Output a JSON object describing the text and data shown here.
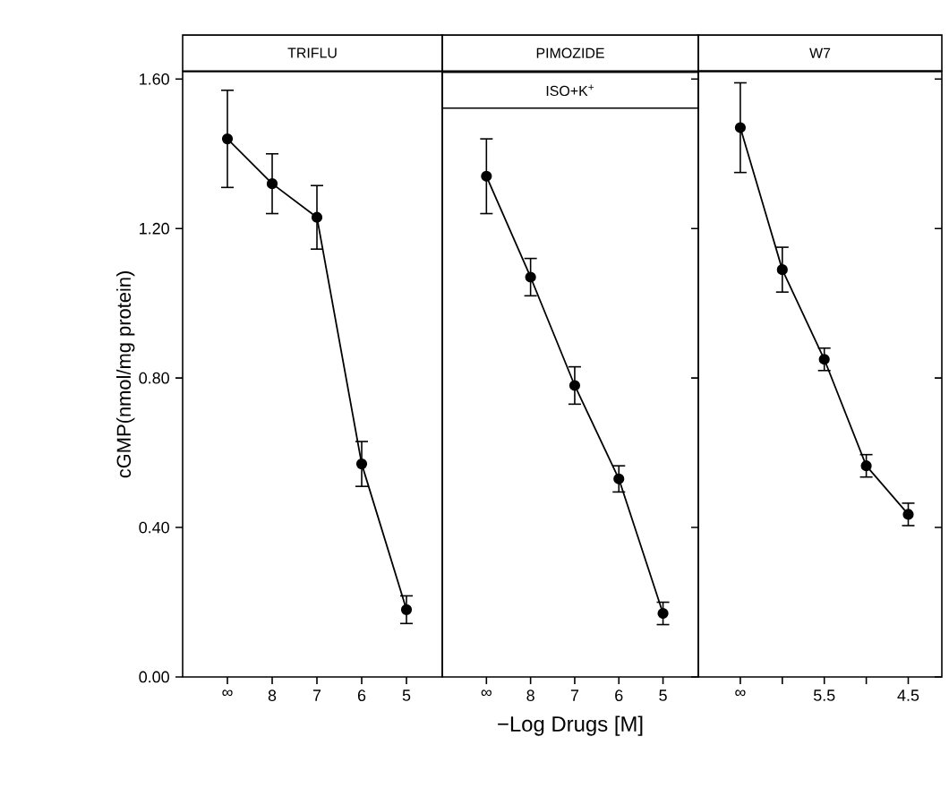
{
  "chart_data": [
    {
      "type": "line",
      "title": "TRIFLU",
      "ylabel": "cGMP(nmol/mg protein)",
      "categories": [
        "∞",
        "8",
        "7",
        "6",
        "5"
      ],
      "values": [
        1.44,
        1.32,
        1.23,
        0.57,
        0.18
      ],
      "errors": [
        0.13,
        0.08,
        0.085,
        0.06,
        0.037
      ],
      "color": "#000000",
      "marker": "circle",
      "ylim": [
        0,
        1.62
      ],
      "yticks": [
        {
          "value": 0,
          "label": "0.00"
        },
        {
          "value": 0.4,
          "label": "0.40"
        },
        {
          "value": 0.8,
          "label": "0.80"
        },
        {
          "value": 1.2,
          "label": "1.20"
        },
        {
          "value": 1.6,
          "label": "1.60"
        }
      ]
    },
    {
      "type": "line",
      "title": "PIMOZIDE",
      "subtitle": "ISO+K$^{+}$",
      "xlabel": "−Log Drugs [M]",
      "categories": [
        "∞",
        "8",
        "7",
        "6",
        "5"
      ],
      "values": [
        1.34,
        1.07,
        0.78,
        0.53,
        0.17
      ],
      "errors": [
        0.1,
        0.05,
        0.05,
        0.035,
        0.03
      ],
      "color": "#000000",
      "marker": "circle",
      "ylim": [
        0,
        1.62
      ],
      "yticks": [
        {
          "value": 0,
          "label": null
        },
        {
          "value": 0.4,
          "label": null
        },
        {
          "value": 0.8,
          "label": null
        },
        {
          "value": 1.2,
          "label": null
        },
        {
          "value": 1.6,
          "label": null
        }
      ],
      "tick_labels": "x"
    },
    {
      "type": "line",
      "title": "W7",
      "categories": [
        "∞",
        null,
        "5.5",
        null,
        "4.5"
      ],
      "values": [
        1.47,
        1.09,
        0.85,
        0.565,
        0.435
      ],
      "errors": [
        0.12,
        0.06,
        0.03,
        0.03,
        0.03
      ],
      "color": "#000000",
      "marker": "circle",
      "ylim": [
        0,
        1.62
      ],
      "yticks": [
        {
          "value": 0,
          "label": null
        },
        {
          "value": 0.4,
          "label": null
        },
        {
          "value": 0.8,
          "label": null
        },
        {
          "value": 1.2,
          "label": null
        },
        {
          "value": 1.6,
          "label": null
        }
      ],
      "tick_labels": "x"
    }
  ]
}
